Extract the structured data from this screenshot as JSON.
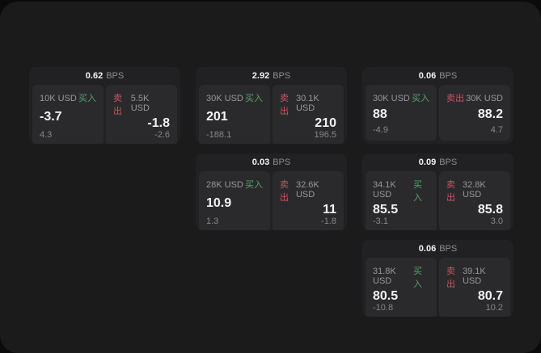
{
  "labels": {
    "buy": "买入",
    "sell": "卖出",
    "bps_unit": "BPS"
  },
  "colors": {
    "background": "#0b0b0c",
    "panel": "#1b1b1c",
    "card": "#212123",
    "tile": "#2a2a2c",
    "buy_green": "#56a36c",
    "sell_red": "#c9545f",
    "text_primary": "#f2f2f3",
    "text_secondary": "#98989a"
  },
  "cards": [
    {
      "bps": "0.62",
      "buy": {
        "amount": "10K USD",
        "value": "-3.7",
        "delta": "4.3"
      },
      "sell": {
        "amount": "5.5K USD",
        "value": "-1.8",
        "delta": "-2.6"
      }
    },
    {
      "bps": "2.92",
      "buy": {
        "amount": "30K USD",
        "value": "201",
        "delta": "-188.1"
      },
      "sell": {
        "amount": "30.1K USD",
        "value": "210",
        "delta": "196.5"
      }
    },
    {
      "bps": "0.06",
      "buy": {
        "amount": "30K USD",
        "value": "88",
        "delta": "-4.9"
      },
      "sell": {
        "amount": "30K USD",
        "value": "88.2",
        "delta": "4.7"
      }
    },
    {
      "bps": "0.03",
      "buy": {
        "amount": "28K USD",
        "value": "10.9",
        "delta": "1.3"
      },
      "sell": {
        "amount": "32.6K USD",
        "value": "11",
        "delta": "-1.8"
      }
    },
    {
      "bps": "0.09",
      "buy": {
        "amount": "34.1K USD",
        "value": "85.5",
        "delta": "-3.1"
      },
      "sell": {
        "amount": "32.8K USD",
        "value": "85.8",
        "delta": "3.0"
      }
    },
    {
      "bps": "0.06",
      "buy": {
        "amount": "31.8K USD",
        "value": "80.5",
        "delta": "-10.8"
      },
      "sell": {
        "amount": "39.1K USD",
        "value": "80.7",
        "delta": "10.2"
      }
    }
  ]
}
